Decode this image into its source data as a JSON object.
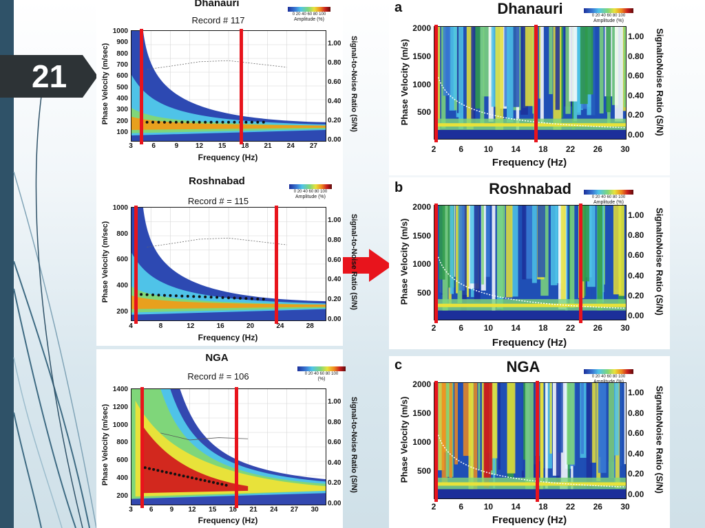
{
  "slide_number": "21",
  "colors": {
    "strip": "#2f5268",
    "badge": "#2d3336",
    "marker": "#e8141c",
    "arrow": "#e8141c"
  },
  "left_panels": [
    {
      "title": "Dhanauri",
      "record": "Record # 117",
      "legend_ticks": "0 20 40 60 80 100",
      "legend_label": "Amplitude (%)",
      "ylabel": "Phase Velocity (m/sec)",
      "xlabel": "Frequency (Hz)",
      "snr_label": "Signal-to-Noise Ratio (S/N)",
      "yticks": [
        "1000",
        "900",
        "800",
        "700",
        "600",
        "500",
        "400",
        "300",
        "200",
        "100"
      ],
      "xticks": [
        "3",
        "6",
        "9",
        "12",
        "15",
        "18",
        "21",
        "24",
        "27"
      ],
      "snr_ticks": [
        "1.00",
        "0.80",
        "0.60",
        "0.40",
        "0.20",
        "0.00"
      ]
    },
    {
      "title": "Roshnabad",
      "record": "Record # = 115",
      "legend_ticks": "0 20 40 60 80 100",
      "legend_label": "Amplitude (%)",
      "ylabel": "Phase Velocity (m/sec)",
      "xlabel": "Frequency (Hz)",
      "snr_label": "Signal-to-Noise Ratio (S/N)",
      "yticks": [
        "1000",
        "800",
        "600",
        "400",
        "200"
      ],
      "xticks": [
        "4",
        "8",
        "12",
        "16",
        "20",
        "24",
        "28"
      ],
      "snr_ticks": [
        "1.00",
        "0.80",
        "0.60",
        "0.40",
        "0.20",
        "0.00"
      ]
    },
    {
      "title": "NGA",
      "record": "Record # = 106",
      "legend_ticks": "0 20 40 60 80 100",
      "legend_label": "(%)",
      "ylabel": "Phase Velocity (m/sec)",
      "xlabel": "Frequency (Hz)",
      "snr_label": "Signal-to-Noise Ratio (S/N)",
      "yticks": [
        "1400",
        "1200",
        "1000",
        "800",
        "600",
        "400",
        "200"
      ],
      "xticks": [
        "3",
        "6",
        "9",
        "12",
        "15",
        "18",
        "21",
        "24",
        "27",
        "30"
      ],
      "snr_ticks": [
        "1.00",
        "0.80",
        "0.60",
        "0.40",
        "0.20",
        "0.00"
      ]
    }
  ],
  "right_panels": [
    {
      "letter": "a",
      "title": "Dhanauri",
      "legend_ticks": "0 20 40 60 80 100",
      "legend_label": "Amplitude (%)",
      "ylabel": "Phase Velocity (m/s)",
      "xlabel": "Frequency (Hz)",
      "snr_label": "SignaltoNoise Ratio (S/N)",
      "yticks": [
        "2000",
        "1500",
        "1000",
        "500"
      ],
      "xticks": [
        "2",
        "6",
        "10",
        "14",
        "18",
        "22",
        "26",
        "30"
      ],
      "snr_ticks": [
        "1.00",
        "0.80",
        "0.60",
        "0.40",
        "0.20",
        "0.00"
      ]
    },
    {
      "letter": "b",
      "title": "Roshnabad",
      "legend_ticks": "0 20 40 60 80 100",
      "legend_label": "Amplitude (%)",
      "ylabel": "Phase Velocity (m/s)",
      "xlabel": "Frequency (Hz)",
      "snr_label": "SignaltoNoise Ratio (S/N)",
      "yticks": [
        "2000",
        "1500",
        "1000",
        "500"
      ],
      "xticks": [
        "2",
        "6",
        "10",
        "14",
        "18",
        "22",
        "26",
        "30"
      ],
      "snr_ticks": [
        "1.00",
        "0.80",
        "0.60",
        "0.40",
        "0.20",
        "0.00"
      ]
    },
    {
      "letter": "c",
      "title": "NGA",
      "legend_ticks": "0 20 40 60 80 100",
      "legend_label": "Amplitude (%)",
      "ylabel": "Phase Velocity (m/s)",
      "xlabel": "Frequency (Hz)",
      "snr_label": "SignaltoNoise Ratio (S/N)",
      "yticks": [
        "2000",
        "1500",
        "1000",
        "500"
      ],
      "xticks": [
        "2",
        "6",
        "10",
        "14",
        "18",
        "22",
        "26",
        "30"
      ],
      "snr_ticks": [
        "1.00",
        "0.80",
        "0.60",
        "0.40",
        "0.20",
        "0.00"
      ]
    }
  ]
}
